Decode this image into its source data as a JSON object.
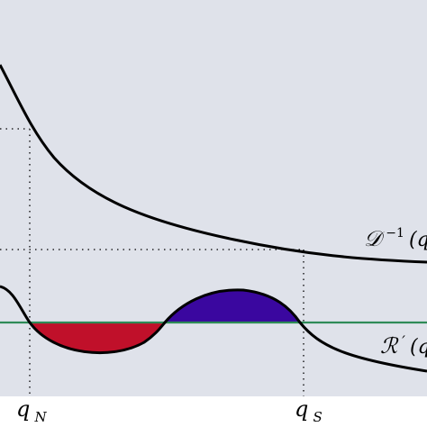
{
  "figure": {
    "background_color": "#dfe2ea",
    "curve_color": "#000000",
    "baseline_color": "#2e8b57",
    "negative_region_color": "#c0102a",
    "positive_region_color": "#3a079f"
  },
  "labels": {
    "d_inverse_main": "𝒟",
    "d_inverse_sup": "−1",
    "d_inverse_arg": "(q",
    "r_prime_main": "ℛ",
    "r_prime_prime": "′",
    "r_prime_arg": "(q",
    "q_n_main": "q",
    "q_n_sub": "N",
    "q_s_main": "q",
    "q_s_sub": "S"
  }
}
